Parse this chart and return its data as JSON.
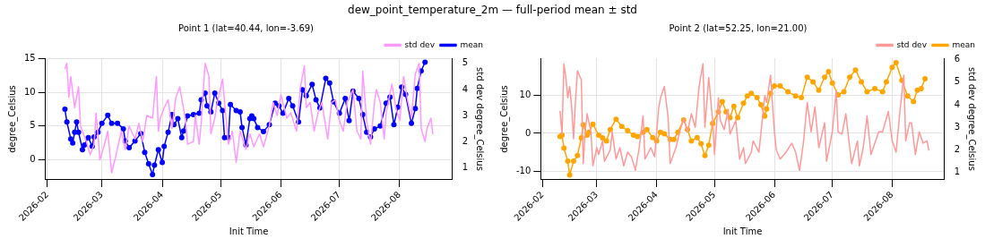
{
  "chart_data": [
    {
      "type": "line",
      "title": "Point 1 (lat=40.44, lon=-3.69)",
      "annotations": [
        "dew_point_temperature_2m — full-period mean ± std"
      ],
      "xlabel": "Init Time",
      "ylabel": "degree_Celsius",
      "y2label": "std dev degree_Celsius",
      "xlim": [
        "2026-01-31",
        "2026-08-28"
      ],
      "xticks": [
        {
          "value": "2026-02-01",
          "label": "2026-02"
        },
        {
          "value": "2026-03-01",
          "label": "2026-03"
        },
        {
          "value": "2026-04-01",
          "label": "2026-04"
        },
        {
          "value": "2026-05-01",
          "label": "2026-05"
        },
        {
          "value": "2026-06-01",
          "label": "2026-06"
        },
        {
          "value": "2026-07-01",
          "label": "2026-07"
        },
        {
          "value": "2026-08-01",
          "label": "2026-08"
        }
      ],
      "ylim": [
        -3,
        15.1
      ],
      "yticks": [
        0,
        5,
        10,
        15
      ],
      "y2lim": [
        0.53,
        5.2
      ],
      "y2ticks": [
        1,
        2,
        3,
        4,
        5
      ],
      "grid": true,
      "legend": "top right",
      "series": [
        {
          "name": "mean",
          "type": "line",
          "color": "#0000ff",
          "marker": "circle",
          "x": [
            "2026-02-10",
            "2026-02-11",
            "2026-02-13",
            "2026-02-14",
            "2026-02-15",
            "2026-02-16",
            "2026-02-17",
            "2026-02-19",
            "2026-02-20",
            "2026-02-22",
            "2026-02-24",
            "2026-02-25",
            "2026-02-27",
            "2026-03-01",
            "2026-03-04",
            "2026-03-06",
            "2026-03-09",
            "2026-03-12",
            "2026-03-13",
            "2026-03-15",
            "2026-03-18",
            "2026-03-21",
            "2026-03-23",
            "2026-03-25",
            "2026-03-27",
            "2026-03-28",
            "2026-03-30",
            "2026-04-01",
            "2026-04-02",
            "2026-04-04",
            "2026-04-06",
            "2026-04-07",
            "2026-04-09",
            "2026-04-11",
            "2026-04-12",
            "2026-04-14",
            "2026-04-17",
            "2026-04-20",
            "2026-04-21",
            "2026-04-23",
            "2026-04-24",
            "2026-04-26",
            "2026-04-28",
            "2026-04-30",
            "2026-05-02",
            "2026-05-03",
            "2026-05-05",
            "2026-05-06",
            "2026-05-09",
            "2026-05-11",
            "2026-05-12",
            "2026-05-14",
            "2026-05-16",
            "2026-05-17",
            "2026-05-18",
            "2026-05-20",
            "2026-05-23",
            "2026-05-26",
            "2026-05-29",
            "2026-05-31",
            "2026-06-02",
            "2026-06-05",
            "2026-06-07",
            "2026-06-10",
            "2026-06-12",
            "2026-06-14",
            "2026-06-17",
            "2026-06-19",
            "2026-06-21",
            "2026-06-24",
            "2026-06-26",
            "2026-06-28",
            "2026-07-01",
            "2026-07-04",
            "2026-07-06",
            "2026-07-08",
            "2026-07-11",
            "2026-07-13",
            "2026-07-15",
            "2026-07-17",
            "2026-07-19",
            "2026-07-22",
            "2026-07-25",
            "2026-07-27",
            "2026-07-29",
            "2026-07-31",
            "2026-08-02",
            "2026-08-04",
            "2026-08-07",
            "2026-08-09",
            "2026-08-10",
            "2026-08-12",
            "2026-08-14"
          ],
          "values": [
            7.5,
            5.6,
            3.1,
            2.5,
            4.1,
            5.6,
            4.1,
            1.5,
            2.2,
            3.3,
            2.0,
            3.4,
            4.1,
            5.4,
            6.6,
            5.4,
            5.4,
            4.6,
            2.8,
            1.8,
            2.8,
            3.9,
            1.1,
            -0.6,
            -2.2,
            -0.8,
            1.5,
            -0.4,
            2.0,
            4.1,
            6.7,
            5.2,
            6.1,
            3.3,
            4.3,
            6.5,
            6.7,
            6.9,
            8.9,
            9.9,
            8.0,
            7.1,
            9.9,
            8.4,
            7.3,
            3.3,
            3.3,
            8.2,
            7.3,
            7.1,
            4.8,
            2.2,
            6.1,
            6.5,
            6.1,
            4.8,
            4.2,
            5.2,
            8.4,
            8.0,
            6.9,
            9.1,
            8.0,
            5.6,
            10.4,
            9.5,
            11.2,
            8.9,
            7.7,
            12.1,
            11.4,
            8.6,
            6.9,
            9.1,
            5.8,
            10.2,
            9.1,
            6.7,
            4.1,
            3.4,
            4.6,
            5.0,
            8.4,
            9.3,
            5.2,
            7.8,
            10.8,
            9.7,
            5.4,
            7.6,
            10.6,
            13.2,
            14.5
          ]
        },
        {
          "name": "std dev",
          "type": "line",
          "axis": "y2",
          "color": "#ff99ff",
          "x": [
            "2026-02-10",
            "2026-02-11",
            "2026-02-12",
            "2026-02-13",
            "2026-02-15",
            "2026-02-17",
            "2026-02-18",
            "2026-02-21",
            "2026-02-23",
            "2026-02-25",
            "2026-02-26",
            "2026-02-28",
            "2026-03-02",
            "2026-03-04",
            "2026-03-06",
            "2026-03-08",
            "2026-03-11",
            "2026-03-13",
            "2026-03-15",
            "2026-03-18",
            "2026-03-20",
            "2026-03-22",
            "2026-03-24",
            "2026-03-27",
            "2026-03-29",
            "2026-03-30",
            "2026-03-31",
            "2026-04-02",
            "2026-04-04",
            "2026-04-06",
            "2026-04-08",
            "2026-04-10",
            "2026-04-13",
            "2026-04-14",
            "2026-04-17",
            "2026-04-18",
            "2026-04-20",
            "2026-04-21",
            "2026-04-23",
            "2026-04-25",
            "2026-04-26",
            "2026-04-28",
            "2026-04-29",
            "2026-05-02",
            "2026-05-03",
            "2026-05-05",
            "2026-05-07",
            "2026-05-09",
            "2026-05-11",
            "2026-05-14",
            "2026-05-16",
            "2026-05-18",
            "2026-05-21",
            "2026-05-23",
            "2026-05-26",
            "2026-05-28",
            "2026-05-30",
            "2026-06-01",
            "2026-06-04",
            "2026-06-06",
            "2026-06-09",
            "2026-06-11",
            "2026-06-13",
            "2026-06-14",
            "2026-06-16",
            "2026-06-18",
            "2026-06-20",
            "2026-06-22",
            "2026-06-25",
            "2026-06-27",
            "2026-06-29",
            "2026-07-01",
            "2026-07-03",
            "2026-07-05",
            "2026-07-08",
            "2026-07-10",
            "2026-07-12",
            "2026-07-13",
            "2026-07-15",
            "2026-07-17",
            "2026-07-19",
            "2026-07-20",
            "2026-07-22",
            "2026-07-24",
            "2026-07-25",
            "2026-07-28",
            "2026-07-30",
            "2026-08-01",
            "2026-08-03",
            "2026-08-05",
            "2026-08-07",
            "2026-08-09",
            "2026-08-11",
            "2026-08-12",
            "2026-08-14",
            "2026-08-15",
            "2026-08-17",
            "2026-08-18"
          ],
          "values": [
            4.8,
            5.0,
            3.7,
            4.5,
            3.3,
            4.1,
            2.6,
            2.0,
            1.5,
            1.9,
            3.1,
            1.3,
            1.8,
            2.4,
            0.8,
            1.4,
            2.4,
            1.7,
            2.6,
            2.1,
            2.7,
            2.0,
            3.0,
            2.9,
            4.5,
            2.4,
            2.9,
            3.3,
            3.6,
            2.5,
            3.7,
            4.1,
            2.8,
            1.9,
            2.0,
            3.0,
            1.9,
            2.7,
            5.0,
            4.5,
            2.3,
            2.9,
            3.4,
            4.4,
            3.5,
            1.9,
            2.4,
            1.2,
            2.4,
            1.7,
            2.3,
            1.8,
            2.3,
            1.8,
            2.6,
            3.5,
            3.0,
            3.8,
            2.9,
            3.1,
            2.4,
            4.1,
            4.9,
            3.3,
            3.5,
            2.4,
            3.1,
            3.5,
            2.1,
            3.5,
            3.6,
            2.8,
            2.4,
            3.5,
            4.0,
            2.4,
            2.1,
            4.7,
            2.8,
            1.9,
            3.5,
            4.0,
            3.5,
            2.1,
            3.1,
            4.2,
            3.3,
            2.8,
            4.5,
            3.6,
            2.9,
            4.6,
            5.0,
            2.5,
            2.0,
            2.5,
            2.9,
            2.3
          ]
        }
      ]
    },
    {
      "type": "line",
      "title": "Point 2 (lat=52.25, lon=21.00)",
      "xlabel": "Init Time",
      "ylabel": "degree_Celsius",
      "y2label": "std dev degree_Celsius",
      "xlim": [
        "2026-01-31",
        "2026-08-28"
      ],
      "xticks": [
        {
          "value": "2026-02-01",
          "label": "2026-02"
        },
        {
          "value": "2026-03-01",
          "label": "2026-03"
        },
        {
          "value": "2026-04-01",
          "label": "2026-04"
        },
        {
          "value": "2026-05-01",
          "label": "2026-05"
        },
        {
          "value": "2026-06-01",
          "label": "2026-06"
        },
        {
          "value": "2026-07-01",
          "label": "2026-07"
        },
        {
          "value": "2026-08-01",
          "label": "2026-08"
        }
      ],
      "ylim": [
        -12.2,
        19.7
      ],
      "yticks": [
        -10,
        0,
        10
      ],
      "y2lim": [
        0.68,
        6.05
      ],
      "y2ticks": [
        1,
        2,
        3,
        4,
        5,
        6
      ],
      "grid": true,
      "legend": "top right",
      "series": [
        {
          "name": "mean",
          "type": "line",
          "color": "#ffa500",
          "marker": "circle",
          "x": [
            "2026-02-10",
            "2026-02-11",
            "2026-02-12",
            "2026-02-14",
            "2026-02-15",
            "2026-02-17",
            "2026-02-19",
            "2026-02-21",
            "2026-02-22",
            "2026-02-24",
            "2026-02-25",
            "2026-02-27",
            "2026-03-02",
            "2026-03-04",
            "2026-03-06",
            "2026-03-08",
            "2026-03-11",
            "2026-03-14",
            "2026-03-17",
            "2026-03-20",
            "2026-03-22",
            "2026-03-25",
            "2026-03-27",
            "2026-03-30",
            "2026-04-01",
            "2026-04-03",
            "2026-04-05",
            "2026-04-08",
            "2026-04-10",
            "2026-04-12",
            "2026-04-15",
            "2026-04-17",
            "2026-04-19",
            "2026-04-22",
            "2026-04-24",
            "2026-04-26",
            "2026-04-28",
            "2026-04-30",
            "2026-05-03",
            "2026-05-05",
            "2026-05-07",
            "2026-05-09",
            "2026-05-11",
            "2026-05-13",
            "2026-05-16",
            "2026-05-18",
            "2026-05-20",
            "2026-05-23",
            "2026-05-25",
            "2026-05-27",
            "2026-05-28",
            "2026-05-30",
            "2026-06-01",
            "2026-06-04",
            "2026-06-08",
            "2026-06-12",
            "2026-06-15",
            "2026-06-18",
            "2026-06-21",
            "2026-06-24",
            "2026-06-27",
            "2026-06-29",
            "2026-07-01",
            "2026-07-04",
            "2026-07-07",
            "2026-07-10",
            "2026-07-13",
            "2026-07-16",
            "2026-07-19",
            "2026-07-23",
            "2026-07-27",
            "2026-07-29",
            "2026-08-01",
            "2026-08-03",
            "2026-08-06",
            "2026-08-09",
            "2026-08-12",
            "2026-08-14",
            "2026-08-16",
            "2026-08-18"
          ],
          "values": [
            -0.8,
            -0.5,
            -3.9,
            -7.3,
            -10.9,
            -7.3,
            -5.8,
            -1.2,
            2.2,
            -0.5,
            0.3,
            2.4,
            -0.5,
            -1.2,
            -2.0,
            1.0,
            3.7,
            1.8,
            0.7,
            -0.5,
            -0.8,
            0.3,
            1.0,
            -1.1,
            -2.0,
            0.3,
            -0.1,
            -1.6,
            -1.6,
            0.3,
            3.5,
            1.0,
            -2.0,
            -1.1,
            -2.7,
            -5.8,
            -3.1,
            2.6,
            5.6,
            8.3,
            5.6,
            4.1,
            7.1,
            4.1,
            7.9,
            9.8,
            10.5,
            9.4,
            7.5,
            4.5,
            6.4,
            10.5,
            12.4,
            12.4,
            10.9,
            9.8,
            9.4,
            14.7,
            13.5,
            11.3,
            14.7,
            16.2,
            13.2,
            10.1,
            10.9,
            14.7,
            16.6,
            13.5,
            10.9,
            11.7,
            10.9,
            13.5,
            17.3,
            18.5,
            13.9,
            9.8,
            8.3,
            11.3,
            11.7,
            14.3
          ]
        },
        {
          "name": "std dev",
          "type": "line",
          "axis": "y2",
          "color": "#ff9999",
          "x": [
            "2026-02-10",
            "2026-02-11",
            "2026-02-12",
            "2026-02-13",
            "2026-02-14",
            "2026-02-15",
            "2026-02-16",
            "2026-02-17",
            "2026-02-18",
            "2026-02-19",
            "2026-02-21",
            "2026-02-22",
            "2026-02-23",
            "2026-02-24",
            "2026-02-26",
            "2026-02-27",
            "2026-03-01",
            "2026-03-02",
            "2026-03-04",
            "2026-03-05",
            "2026-03-08",
            "2026-03-09",
            "2026-03-11",
            "2026-03-13",
            "2026-03-15",
            "2026-03-17",
            "2026-03-19",
            "2026-03-21",
            "2026-03-23",
            "2026-03-25",
            "2026-03-26",
            "2026-03-29",
            "2026-03-31",
            "2026-04-02",
            "2026-04-03",
            "2026-04-05",
            "2026-04-07",
            "2026-04-08",
            "2026-04-11",
            "2026-04-13",
            "2026-04-15",
            "2026-04-17",
            "2026-04-19",
            "2026-04-21",
            "2026-04-23",
            "2026-04-25",
            "2026-04-26",
            "2026-04-27",
            "2026-04-28",
            "2026-04-30",
            "2026-05-01",
            "2026-05-03",
            "2026-05-04",
            "2026-05-06",
            "2026-05-08",
            "2026-05-09",
            "2026-05-12",
            "2026-05-14",
            "2026-05-16",
            "2026-05-17",
            "2026-05-20",
            "2026-05-21",
            "2026-05-24",
            "2026-05-27",
            "2026-05-28",
            "2026-05-30",
            "2026-06-01",
            "2026-06-02",
            "2026-06-04",
            "2026-06-07",
            "2026-06-10",
            "2026-06-12",
            "2026-06-14",
            "2026-06-16",
            "2026-06-18",
            "2026-06-20",
            "2026-06-22",
            "2026-06-24",
            "2026-06-27",
            "2026-06-28",
            "2026-07-01",
            "2026-07-03",
            "2026-07-04",
            "2026-07-06",
            "2026-07-08",
            "2026-07-10",
            "2026-07-11",
            "2026-07-14",
            "2026-07-15",
            "2026-07-17",
            "2026-07-19",
            "2026-07-21",
            "2026-07-23",
            "2026-07-25",
            "2026-07-27",
            "2026-07-30",
            "2026-08-01",
            "2026-08-03",
            "2026-08-05",
            "2026-08-07",
            "2026-08-08",
            "2026-08-10",
            "2026-08-11",
            "2026-08-13",
            "2026-08-15",
            "2026-08-17",
            "2026-08-19",
            "2026-08-20"
          ],
          "values": [
            3.7,
            2.7,
            5.8,
            5.2,
            4.3,
            4.8,
            3.9,
            2.5,
            4.2,
            5.5,
            5.1,
            1.4,
            2.8,
            3.6,
            2.8,
            1.3,
            2.1,
            1.8,
            2.4,
            1.5,
            2.0,
            2.8,
            1.6,
            2.1,
            1.3,
            1.9,
            1.7,
            1.1,
            2.1,
            3.5,
            1.6,
            2.1,
            1.7,
            3.8,
            4.3,
            4.8,
            3.4,
            1.4,
            2.1,
            2.8,
            3.4,
            2.8,
            3.6,
            3.0,
            4.8,
            5.8,
            3.0,
            4.1,
            5.2,
            3.3,
            1.8,
            4.3,
            3.3,
            2.9,
            3.8,
            2.7,
            3.3,
            1.6,
            2.1,
            1.4,
            1.9,
            2.4,
            1.9,
            4.4,
            4.1,
            5.3,
            2.8,
            2.0,
            1.6,
            1.9,
            2.3,
            1.9,
            1.1,
            2.3,
            4.1,
            2.8,
            3.9,
            2.1,
            3.2,
            1.5,
            2.8,
            4.6,
            2.8,
            2.7,
            3.6,
            2.1,
            1.4,
            2.4,
            1.3,
            2.1,
            3.5,
            1.8,
            2.3,
            2.8,
            2.8,
            3.7,
            2.4,
            1.9,
            3.7,
            5.3,
            2.4,
            3.2,
            3.2,
            1.8,
            2.8,
            2.3,
            2.4,
            2.0
          ]
        }
      ]
    }
  ]
}
